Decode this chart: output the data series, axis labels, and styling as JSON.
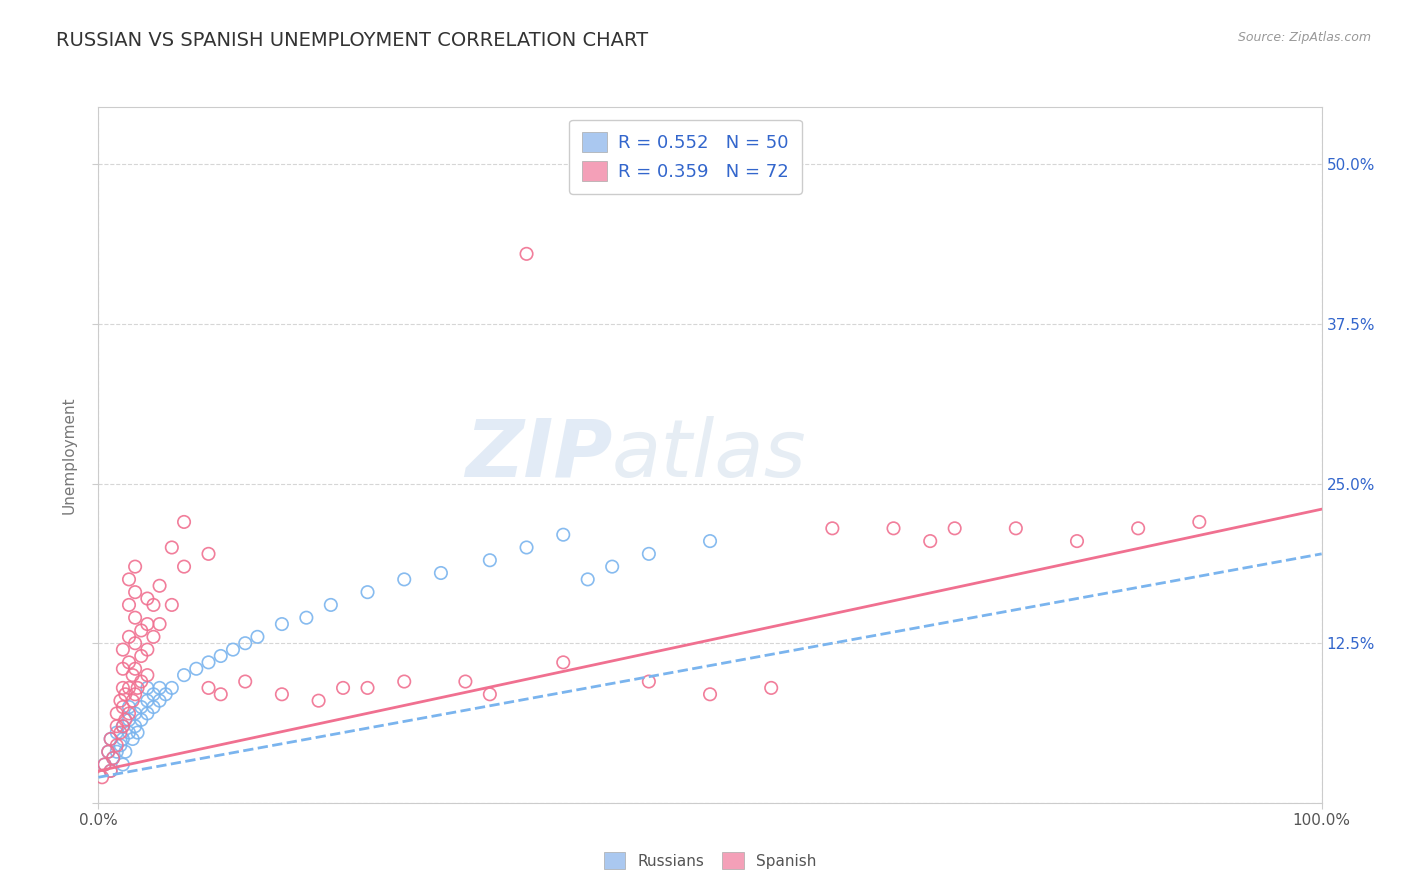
{
  "title": "RUSSIAN VS SPANISH UNEMPLOYMENT CORRELATION CHART",
  "source_text": "Source: ZipAtlas.com",
  "ylabel": "Unemployment",
  "xlim": [
    0,
    1.0
  ],
  "ylim": [
    0,
    0.545
  ],
  "yticks": [
    0.0,
    0.125,
    0.25,
    0.375,
    0.5
  ],
  "xticks": [
    0.0,
    1.0
  ],
  "xtick_labels": [
    "0.0%",
    "100.0%"
  ],
  "right_ytick_labels": [
    "12.5%",
    "25.0%",
    "37.5%",
    "50.0%"
  ],
  "right_ytick_vals": [
    0.125,
    0.25,
    0.375,
    0.5
  ],
  "legend_entries": [
    {
      "label": "R = 0.552   N = 50",
      "patch_color": "#aac8f0"
    },
    {
      "label": "R = 0.359   N = 72",
      "patch_color": "#f4a0b8"
    }
  ],
  "legend_R_color": "#3366cc",
  "russians_color": "#7ab4ee",
  "spanish_color": "#f07090",
  "russians_scatter": [
    [
      0.005,
      0.03
    ],
    [
      0.008,
      0.04
    ],
    [
      0.01,
      0.025
    ],
    [
      0.01,
      0.05
    ],
    [
      0.012,
      0.035
    ],
    [
      0.015,
      0.04
    ],
    [
      0.015,
      0.055
    ],
    [
      0.018,
      0.045
    ],
    [
      0.02,
      0.03
    ],
    [
      0.02,
      0.05
    ],
    [
      0.02,
      0.06
    ],
    [
      0.022,
      0.04
    ],
    [
      0.025,
      0.055
    ],
    [
      0.025,
      0.065
    ],
    [
      0.025,
      0.075
    ],
    [
      0.028,
      0.05
    ],
    [
      0.03,
      0.06
    ],
    [
      0.03,
      0.07
    ],
    [
      0.032,
      0.055
    ],
    [
      0.035,
      0.065
    ],
    [
      0.035,
      0.075
    ],
    [
      0.04,
      0.07
    ],
    [
      0.04,
      0.08
    ],
    [
      0.04,
      0.09
    ],
    [
      0.045,
      0.075
    ],
    [
      0.045,
      0.085
    ],
    [
      0.05,
      0.08
    ],
    [
      0.05,
      0.09
    ],
    [
      0.055,
      0.085
    ],
    [
      0.06,
      0.09
    ],
    [
      0.07,
      0.1
    ],
    [
      0.08,
      0.105
    ],
    [
      0.09,
      0.11
    ],
    [
      0.1,
      0.115
    ],
    [
      0.11,
      0.12
    ],
    [
      0.12,
      0.125
    ],
    [
      0.13,
      0.13
    ],
    [
      0.15,
      0.14
    ],
    [
      0.17,
      0.145
    ],
    [
      0.19,
      0.155
    ],
    [
      0.22,
      0.165
    ],
    [
      0.25,
      0.175
    ],
    [
      0.28,
      0.18
    ],
    [
      0.32,
      0.19
    ],
    [
      0.35,
      0.2
    ],
    [
      0.38,
      0.21
    ],
    [
      0.4,
      0.175
    ],
    [
      0.42,
      0.185
    ],
    [
      0.45,
      0.195
    ],
    [
      0.5,
      0.205
    ]
  ],
  "spanish_scatter": [
    [
      0.003,
      0.02
    ],
    [
      0.005,
      0.03
    ],
    [
      0.008,
      0.04
    ],
    [
      0.01,
      0.025
    ],
    [
      0.01,
      0.05
    ],
    [
      0.012,
      0.035
    ],
    [
      0.015,
      0.045
    ],
    [
      0.015,
      0.06
    ],
    [
      0.015,
      0.07
    ],
    [
      0.018,
      0.055
    ],
    [
      0.018,
      0.08
    ],
    [
      0.02,
      0.06
    ],
    [
      0.02,
      0.075
    ],
    [
      0.02,
      0.09
    ],
    [
      0.02,
      0.105
    ],
    [
      0.02,
      0.12
    ],
    [
      0.022,
      0.065
    ],
    [
      0.022,
      0.085
    ],
    [
      0.025,
      0.07
    ],
    [
      0.025,
      0.09
    ],
    [
      0.025,
      0.11
    ],
    [
      0.025,
      0.13
    ],
    [
      0.025,
      0.155
    ],
    [
      0.025,
      0.175
    ],
    [
      0.028,
      0.08
    ],
    [
      0.028,
      0.1
    ],
    [
      0.03,
      0.085
    ],
    [
      0.03,
      0.105
    ],
    [
      0.03,
      0.125
    ],
    [
      0.03,
      0.145
    ],
    [
      0.03,
      0.165
    ],
    [
      0.03,
      0.185
    ],
    [
      0.032,
      0.09
    ],
    [
      0.035,
      0.095
    ],
    [
      0.035,
      0.115
    ],
    [
      0.035,
      0.135
    ],
    [
      0.04,
      0.1
    ],
    [
      0.04,
      0.12
    ],
    [
      0.04,
      0.14
    ],
    [
      0.04,
      0.16
    ],
    [
      0.045,
      0.13
    ],
    [
      0.045,
      0.155
    ],
    [
      0.05,
      0.14
    ],
    [
      0.05,
      0.17
    ],
    [
      0.06,
      0.155
    ],
    [
      0.06,
      0.2
    ],
    [
      0.07,
      0.185
    ],
    [
      0.07,
      0.22
    ],
    [
      0.09,
      0.195
    ],
    [
      0.09,
      0.09
    ],
    [
      0.1,
      0.085
    ],
    [
      0.12,
      0.095
    ],
    [
      0.15,
      0.085
    ],
    [
      0.18,
      0.08
    ],
    [
      0.2,
      0.09
    ],
    [
      0.22,
      0.09
    ],
    [
      0.25,
      0.095
    ],
    [
      0.3,
      0.095
    ],
    [
      0.32,
      0.085
    ],
    [
      0.35,
      0.43
    ],
    [
      0.38,
      0.11
    ],
    [
      0.45,
      0.095
    ],
    [
      0.5,
      0.085
    ],
    [
      0.55,
      0.09
    ],
    [
      0.6,
      0.215
    ],
    [
      0.65,
      0.215
    ],
    [
      0.68,
      0.205
    ],
    [
      0.7,
      0.215
    ],
    [
      0.75,
      0.215
    ],
    [
      0.8,
      0.205
    ],
    [
      0.85,
      0.215
    ],
    [
      0.9,
      0.22
    ]
  ],
  "russian_trendline": {
    "slope": 0.175,
    "intercept": 0.02
  },
  "spanish_trendline": {
    "slope": 0.205,
    "intercept": 0.025
  },
  "watermark_zip": "ZIP",
  "watermark_atlas": "atlas",
  "background_color": "#ffffff",
  "grid_color": "#cccccc",
  "title_color": "#333333",
  "right_axis_color": "#3366cc",
  "bottom_legend_labels": [
    "Russians",
    "Spanish"
  ]
}
